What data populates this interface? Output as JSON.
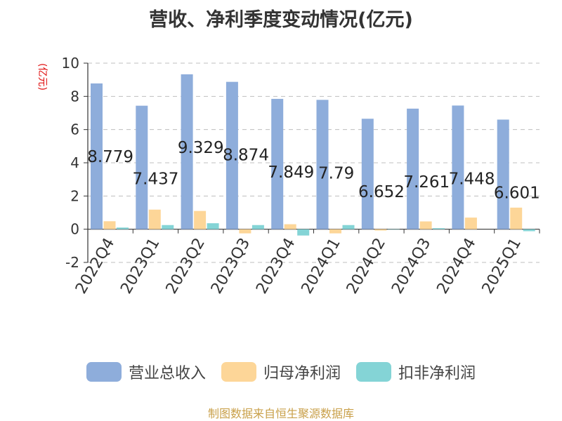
{
  "title": "营收、净利季度变动情况(亿元)",
  "source": "制图数据来自恒生聚源数据库",
  "chart_data": {
    "type": "bar",
    "ylabel": "(亿元)",
    "ylim": [
      -2,
      10
    ],
    "yticks": [
      -2,
      0,
      2,
      4,
      6,
      8,
      10
    ],
    "grid": true,
    "legend_position": "bottom",
    "categories": [
      "2022Q4",
      "2023Q1",
      "2023Q2",
      "2023Q3",
      "2023Q4",
      "2024Q1",
      "2024Q2",
      "2024Q3",
      "2024Q4",
      "2025Q1"
    ],
    "series": [
      {
        "name": "营业总收入",
        "color": "#8eaddb",
        "values": [
          8.779,
          7.437,
          9.329,
          8.874,
          7.849,
          7.79,
          6.652,
          7.261,
          7.448,
          6.601
        ],
        "labels": [
          "8.779",
          "7.437",
          "9.329",
          "8.874",
          "7.849",
          "7.79",
          "6.652",
          "7.261",
          "7.448",
          "6.601"
        ]
      },
      {
        "name": "归母净利润",
        "color": "#fdd698",
        "values": [
          0.48,
          1.18,
          1.1,
          -0.25,
          0.3,
          -0.25,
          -0.08,
          0.47,
          0.7,
          1.3
        ]
      },
      {
        "name": "扣非净利润",
        "color": "#84d4d6",
        "values": [
          0.1,
          0.25,
          0.36,
          0.25,
          -0.38,
          0.25,
          -0.02,
          0.06,
          0.0,
          -0.12
        ]
      }
    ]
  }
}
